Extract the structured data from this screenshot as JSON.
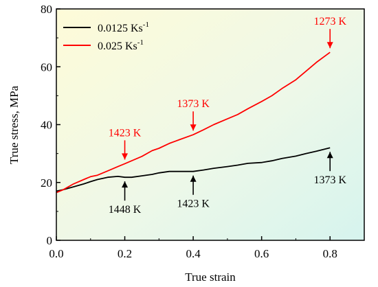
{
  "chart_data": {
    "type": "line",
    "xlabel": "True strain",
    "ylabel": "True stress, MPa",
    "xlim": [
      0.0,
      0.9
    ],
    "ylim": [
      0,
      80
    ],
    "xticks": [
      "0.0",
      "0.2",
      "0.4",
      "0.6",
      "0.8"
    ],
    "xtick_values": [
      0.0,
      0.2,
      0.4,
      0.6,
      0.8
    ],
    "yticks": [
      "0",
      "20",
      "40",
      "60",
      "80"
    ],
    "ytick_values": [
      0,
      20,
      40,
      60,
      80
    ],
    "grid": false,
    "legend_position": "top-left",
    "background": "gradient from light yellow (top-left) to light cyan (bottom-right)",
    "series": [
      {
        "name": "0.0125 Ks",
        "name_superscript": "-1",
        "color": "#000000",
        "x": [
          0.0,
          0.02,
          0.05,
          0.08,
          0.1,
          0.12,
          0.15,
          0.18,
          0.2,
          0.22,
          0.25,
          0.28,
          0.3,
          0.33,
          0.36,
          0.4,
          0.43,
          0.46,
          0.5,
          0.53,
          0.56,
          0.6,
          0.63,
          0.66,
          0.7,
          0.73,
          0.76,
          0.8
        ],
        "y": [
          17,
          17.5,
          18.5,
          19.5,
          20.3,
          21,
          21.8,
          22.1,
          21.8,
          21.8,
          22.3,
          22.8,
          23.3,
          23.8,
          23.8,
          23.8,
          24.3,
          24.9,
          25.5,
          26.0,
          26.6,
          26.9,
          27.5,
          28.3,
          29.1,
          30.0,
          30.8,
          32
        ]
      },
      {
        "name": "0.025 Ks",
        "name_superscript": "-1",
        "color": "#ff0000",
        "x": [
          0.0,
          0.02,
          0.05,
          0.08,
          0.1,
          0.12,
          0.15,
          0.18,
          0.2,
          0.22,
          0.25,
          0.28,
          0.3,
          0.33,
          0.36,
          0.4,
          0.43,
          0.46,
          0.5,
          0.53,
          0.56,
          0.6,
          0.63,
          0.66,
          0.7,
          0.73,
          0.76,
          0.8
        ],
        "y": [
          16.5,
          17.5,
          19.5,
          21,
          22,
          22.5,
          24,
          25.5,
          26.5,
          27.5,
          29,
          31,
          31.8,
          33.5,
          34.8,
          36.5,
          38.2,
          40,
          42,
          43.5,
          45.5,
          48,
          50,
          52.5,
          55.5,
          58.5,
          61.5,
          65
        ]
      }
    ],
    "annotations": [
      {
        "text": "1273 K",
        "x": 0.8,
        "y": 65,
        "color": "#ff0000",
        "direction": "down"
      },
      {
        "text": "1373 K",
        "x": 0.4,
        "y": 36.5,
        "color": "#ff0000",
        "direction": "down"
      },
      {
        "text": "1423 K",
        "x": 0.2,
        "y": 26.5,
        "color": "#ff0000",
        "direction": "down"
      },
      {
        "text": "1448 K",
        "x": 0.2,
        "y": 21.8,
        "color": "#000000",
        "direction": "up"
      },
      {
        "text": "1423 K",
        "x": 0.4,
        "y": 23.8,
        "color": "#000000",
        "direction": "up"
      },
      {
        "text": "1373 K",
        "x": 0.8,
        "y": 32,
        "color": "#000000",
        "direction": "up"
      }
    ]
  }
}
